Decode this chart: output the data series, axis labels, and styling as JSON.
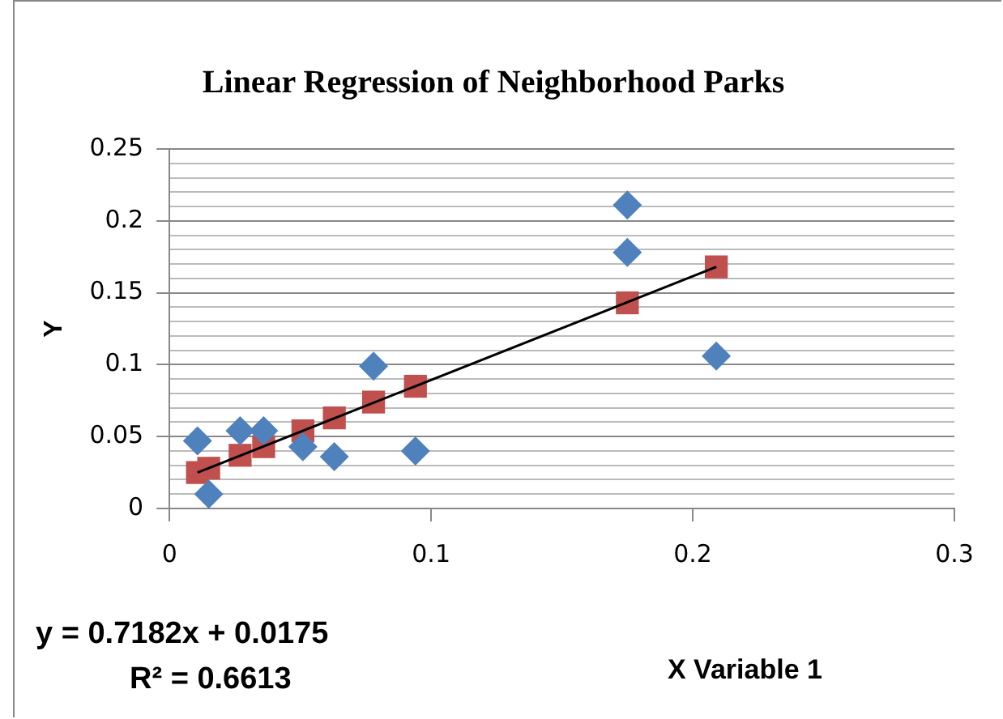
{
  "chart_data": {
    "type": "scatter",
    "title": "Linear Regression of Neighborhood Parks",
    "xlabel": "X Variable 1",
    "ylabel": "Y",
    "xlim": [
      0,
      0.3
    ],
    "xticks": [
      0,
      0.1,
      0.2,
      0.3
    ],
    "ylim": [
      0,
      0.25
    ],
    "yticks": [
      0,
      {
        "value": 0.01,
        "label": null
      },
      {
        "value": 0.02,
        "label": null
      },
      {
        "value": 0.03,
        "label": null
      },
      {
        "value": 0.04,
        "label": null
      },
      0.05,
      {
        "value": 0.06,
        "label": null
      },
      {
        "value": 0.07,
        "label": null
      },
      {
        "value": 0.08,
        "label": null
      },
      {
        "value": 0.09,
        "label": null
      },
      0.1,
      {
        "value": 0.11,
        "label": null
      },
      {
        "value": 0.12,
        "label": null
      },
      {
        "value": 0.13,
        "label": null
      },
      {
        "value": 0.14,
        "label": null
      },
      0.15,
      {
        "value": 0.16,
        "label": null
      },
      {
        "value": 0.17,
        "label": null
      },
      {
        "value": 0.18,
        "label": null
      },
      {
        "value": 0.19,
        "label": null
      },
      0.2,
      {
        "value": 0.21,
        "label": null
      },
      {
        "value": 0.22,
        "label": null
      },
      {
        "value": 0.23,
        "label": null
      },
      {
        "value": 0.24,
        "label": null
      },
      0.25
    ],
    "grid": "y",
    "legend": false,
    "annotations": [
      "y = 0.7182x + 0.0175",
      "R² = 0.6613"
    ],
    "series": [
      {
        "type": "scatter",
        "marker": "diamond",
        "color": "#4f81bd",
        "x": [
          0.0107,
          0.015,
          0.027,
          0.036,
          0.051,
          0.063,
          0.078,
          0.094,
          0.175,
          0.175,
          0.209
        ],
        "values": [
          0.047,
          0.01,
          0.054,
          0.054,
          0.043,
          0.036,
          0.099,
          0.04,
          0.211,
          0.178,
          0.106
        ]
      },
      {
        "type": "scatter",
        "marker": "square",
        "color": "#c0504d",
        "x": [
          0.0107,
          0.015,
          0.027,
          0.036,
          0.051,
          0.063,
          0.078,
          0.094,
          0.175,
          0.209
        ],
        "values": [
          0.025,
          0.028,
          0.037,
          0.043,
          0.054,
          0.063,
          0.074,
          0.085,
          0.143,
          0.168
        ]
      },
      {
        "type": "line",
        "marker": "none",
        "color": "#000000",
        "x": [
          0.0107,
          0.209
        ],
        "values": [
          0.025,
          0.168
        ]
      }
    ]
  }
}
